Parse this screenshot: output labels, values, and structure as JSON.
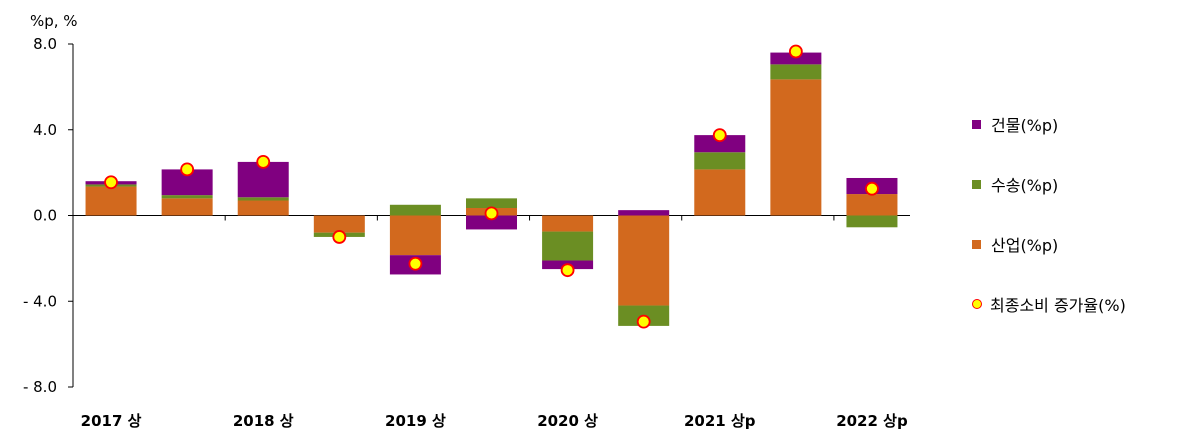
{
  "chart_data": {
    "type": "bar",
    "stacked": true,
    "unit_label": "%p, %",
    "categories": [
      "2017 상",
      "",
      "2018 상",
      "",
      "2019 상",
      "",
      "2020 상",
      "",
      "2021 상p",
      "",
      "2022 상p"
    ],
    "x_tick_labels": [
      "2017 상",
      "2018 상",
      "2019 상",
      "2020 상",
      "2021 상p",
      "2022 상p"
    ],
    "y_ticks": [
      "8.0",
      "4.0",
      "0.0",
      "- 4.0",
      "- 8.0"
    ],
    "ylim": [
      -8,
      8
    ],
    "series": [
      {
        "name": "산업(%p)",
        "color": "#D2691E",
        "values": [
          1.35,
          0.8,
          0.7,
          -0.8,
          -1.85,
          0.35,
          -0.75,
          -4.2,
          2.15,
          6.35,
          1.0
        ]
      },
      {
        "name": "수송(%p)",
        "color": "#6B8E23",
        "values": [
          0.1,
          0.15,
          0.15,
          -0.2,
          0.5,
          0.45,
          -1.35,
          -0.95,
          0.8,
          0.7,
          -0.55
        ]
      },
      {
        "name": "건물(%p)",
        "color": "#800080",
        "values": [
          0.15,
          1.2,
          1.65,
          0.0,
          -0.9,
          -0.65,
          -0.4,
          0.25,
          0.8,
          0.55,
          0.75
        ]
      }
    ],
    "line": {
      "name": "최종소비 증가율(%)",
      "marker_fill": "#FFFF00",
      "marker_edge": "#FF0000",
      "values": [
        1.55,
        2.15,
        2.5,
        -1.0,
        -2.25,
        0.1,
        -2.55,
        -4.95,
        3.75,
        7.65,
        1.25
      ]
    },
    "legend": {
      "position": "right",
      "order": [
        "건물(%p)",
        "수송(%p)",
        "산업(%p)",
        "최종소비 증가율(%)"
      ]
    }
  }
}
